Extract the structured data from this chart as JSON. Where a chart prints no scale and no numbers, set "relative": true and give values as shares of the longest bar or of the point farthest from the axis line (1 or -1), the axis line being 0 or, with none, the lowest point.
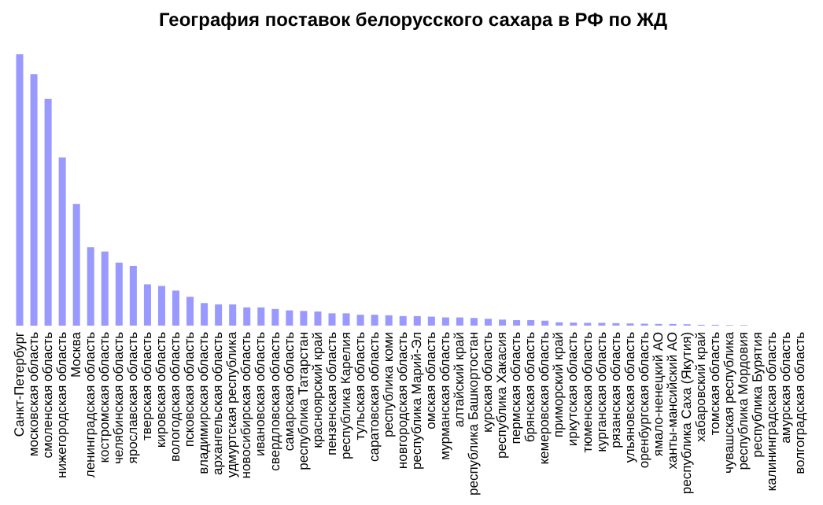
{
  "chart_data": {
    "type": "bar",
    "title": "География поставок белорусского сахара в РФ по ЖД",
    "categories": [
      "Санкт-Петербург",
      "московская область",
      "смоленская область",
      "нижегородская область",
      "Москва",
      "ленинградская область",
      "костромская область",
      "челябинская область",
      "ярославская область",
      "тверская область",
      "кировская область",
      "вологодская область",
      "псковская область",
      "владимирская область",
      "архангельская область",
      "удмуртская республика",
      "новосибирская область",
      "ивановская область",
      "свердловская область",
      "самарская область",
      "республика Татарстан",
      "красноярский край",
      "пензенская область",
      "республика Карелия",
      "тульская область",
      "саратовская область",
      "республика коми",
      "новгородская область",
      "республика Марий-Эл",
      "омская область",
      "мурманская область",
      "алтайский край",
      "республика Башкортостан",
      "курская область",
      "республика Хакасия",
      "пермская область",
      "брянская область",
      "кемеровская область",
      "приморский край",
      "иркутская область",
      "тюменская область",
      "курганская область",
      "рязанская область",
      "ульяновская область",
      "оренбургская область",
      "ямало-ненецкий АО",
      "ханты-мансийский АО",
      "республика Саха (Якутия)",
      "хабаровский край",
      "томская область",
      "чувашская республика",
      "республика Мордовия",
      "республика Бурятия",
      "калининградская область",
      "амурская область",
      "волгоградская область"
    ],
    "values": [
      1,
      0.926,
      0.835,
      0.619,
      0.448,
      0.289,
      0.273,
      0.232,
      0.22,
      0.152,
      0.146,
      0.129,
      0.106,
      0.083,
      0.078,
      0.078,
      0.067,
      0.067,
      0.061,
      0.056,
      0.054,
      0.052,
      0.045,
      0.045,
      0.04,
      0.04,
      0.038,
      0.035,
      0.035,
      0.033,
      0.03,
      0.03,
      0.028,
      0.025,
      0.022,
      0.02,
      0.02,
      0.018,
      0.012,
      0.011,
      0.01,
      0.01,
      0.009,
      0.008,
      0.007,
      0.006,
      0.006,
      0.005,
      0.003,
      0.003,
      0.002,
      0.002,
      0,
      0,
      0,
      0
    ],
    "color": "#9999ff",
    "relative": true,
    "grid": false,
    "legend": false
  }
}
